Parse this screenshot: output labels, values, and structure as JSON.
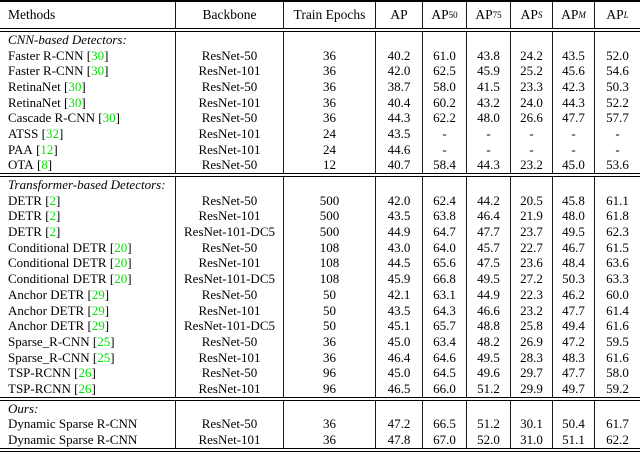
{
  "page": {
    "background": "#ffffff",
    "text_color": "#000000",
    "citation_color": "#00e400"
  },
  "table": {
    "header": {
      "columns": [
        {
          "id": "methods",
          "label": "Methods",
          "sub": null
        },
        {
          "id": "backbone",
          "label": "Backbone",
          "sub": null
        },
        {
          "id": "epochs",
          "label": "Train Epochs",
          "sub": null
        },
        {
          "id": "ap",
          "label": "AP",
          "sub": null
        },
        {
          "id": "ap50",
          "label": "AP",
          "sub": "50",
          "sub_style": "roman"
        },
        {
          "id": "ap75",
          "label": "AP",
          "sub": "75",
          "sub_style": "roman"
        },
        {
          "id": "aps",
          "label": "AP",
          "sub": "S",
          "sub_style": "italic"
        },
        {
          "id": "apm",
          "label": "AP",
          "sub": "M",
          "sub_style": "italic"
        },
        {
          "id": "apl",
          "label": "AP",
          "sub": "L",
          "sub_style": "italic"
        }
      ]
    },
    "sections": [
      {
        "label": "CNN-based Detectors:",
        "rows": [
          {
            "method": "Faster R-CNN",
            "cite": "30",
            "values": [
              "ResNet-50",
              "36",
              "40.2",
              "61.0",
              "43.8",
              "24.2",
              "43.5",
              "52.0"
            ]
          },
          {
            "method": "Faster R-CNN",
            "cite": "30",
            "values": [
              "ResNet-101",
              "36",
              "42.0",
              "62.5",
              "45.9",
              "25.2",
              "45.6",
              "54.6"
            ]
          },
          {
            "method": "RetinaNet",
            "cite": "30",
            "values": [
              "ResNet-50",
              "36",
              "38.7",
              "58.0",
              "41.5",
              "23.3",
              "42.3",
              "50.3"
            ]
          },
          {
            "method": "RetinaNet",
            "cite": "30",
            "values": [
              "ResNet-101",
              "36",
              "40.4",
              "60.2",
              "43.2",
              "24.0",
              "44.3",
              "52.2"
            ]
          },
          {
            "method": "Cascade R-CNN",
            "cite": "30",
            "values": [
              "ResNet-50",
              "36",
              "44.3",
              "62.2",
              "48.0",
              "26.6",
              "47.7",
              "57.7"
            ]
          },
          {
            "method": "ATSS",
            "cite": "32",
            "values": [
              "ResNet-101",
              "24",
              "43.5",
              "-",
              "-",
              "-",
              "-",
              "-"
            ]
          },
          {
            "method": "PAA",
            "cite": "12",
            "values": [
              "ResNet-101",
              "24",
              "44.6",
              "-",
              "-",
              "-",
              "-",
              "-"
            ]
          },
          {
            "method": "OTA",
            "cite": "8",
            "values": [
              "ResNet-50",
              "12",
              "40.7",
              "58.4",
              "44.3",
              "23.2",
              "45.0",
              "53.6"
            ]
          }
        ]
      },
      {
        "label": "Transformer-based Detectors:",
        "rows": [
          {
            "method": "DETR",
            "cite": "2",
            "values": [
              "ResNet-50",
              "500",
              "42.0",
              "62.4",
              "44.2",
              "20.5",
              "45.8",
              "61.1"
            ]
          },
          {
            "method": "DETR",
            "cite": "2",
            "values": [
              "ResNet-101",
              "500",
              "43.5",
              "63.8",
              "46.4",
              "21.9",
              "48.0",
              "61.8"
            ]
          },
          {
            "method": "DETR",
            "cite": "2",
            "values": [
              "ResNet-101-DC5",
              "500",
              "44.9",
              "64.7",
              "47.7",
              "23.7",
              "49.5",
              "62.3"
            ]
          },
          {
            "method": "Conditional DETR",
            "cite": "20",
            "values": [
              "ResNet-50",
              "108",
              "43.0",
              "64.0",
              "45.7",
              "22.7",
              "46.7",
              "61.5"
            ]
          },
          {
            "method": "Conditional DETR",
            "cite": "20",
            "values": [
              "ResNet-101",
              "108",
              "44.5",
              "65.6",
              "47.5",
              "23.6",
              "48.4",
              "63.6"
            ]
          },
          {
            "method": "Conditional DETR",
            "cite": "20",
            "values": [
              "ResNet-101-DC5",
              "108",
              "45.9",
              "66.8",
              "49.5",
              "27.2",
              "50.3",
              "63.3"
            ]
          },
          {
            "method": "Anchor DETR",
            "cite": "29",
            "values": [
              "ResNet-50",
              "50",
              "42.1",
              "63.1",
              "44.9",
              "22.3",
              "46.2",
              "60.0"
            ]
          },
          {
            "method": "Anchor DETR",
            "cite": "29",
            "values": [
              "ResNet-101",
              "50",
              "43.5",
              "64.3",
              "46.6",
              "23.2",
              "47.7",
              "61.4"
            ]
          },
          {
            "method": "Anchor DETR",
            "cite": "29",
            "values": [
              "ResNet-101-DC5",
              "50",
              "45.1",
              "65.7",
              "48.8",
              "25.8",
              "49.4",
              "61.6"
            ]
          },
          {
            "method": "Sparse_R-CNN",
            "cite": "25",
            "values": [
              "ResNet-50",
              "36",
              "45.0",
              "63.4",
              "48.2",
              "26.9",
              "47.2",
              "59.5"
            ]
          },
          {
            "method": "Sparse_R-CNN",
            "cite": "25",
            "values": [
              "ResNet-101",
              "36",
              "46.4",
              "64.6",
              "49.5",
              "28.3",
              "48.3",
              "61.6"
            ]
          },
          {
            "method": "TSP-RCNN",
            "cite": "26",
            "values": [
              "ResNet-50",
              "96",
              "45.0",
              "64.5",
              "49.6",
              "29.7",
              "47.7",
              "58.0"
            ]
          },
          {
            "method": "TSP-RCNN",
            "cite": "26",
            "values": [
              "ResNet-101",
              "96",
              "46.5",
              "66.0",
              "51.2",
              "29.9",
              "49.7",
              "59.2"
            ]
          }
        ]
      },
      {
        "label": "Ours:",
        "rows": [
          {
            "method": "Dynamic Sparse R-CNN",
            "cite": null,
            "values": [
              "ResNet-50",
              "36",
              "47.2",
              "66.5",
              "51.2",
              "30.1",
              "50.4",
              "61.7"
            ]
          },
          {
            "method": "Dynamic Sparse R-CNN",
            "cite": null,
            "values": [
              "ResNet-101",
              "36",
              "47.8",
              "67.0",
              "52.0",
              "31.0",
              "51.1",
              "62.2"
            ]
          }
        ]
      }
    ]
  }
}
